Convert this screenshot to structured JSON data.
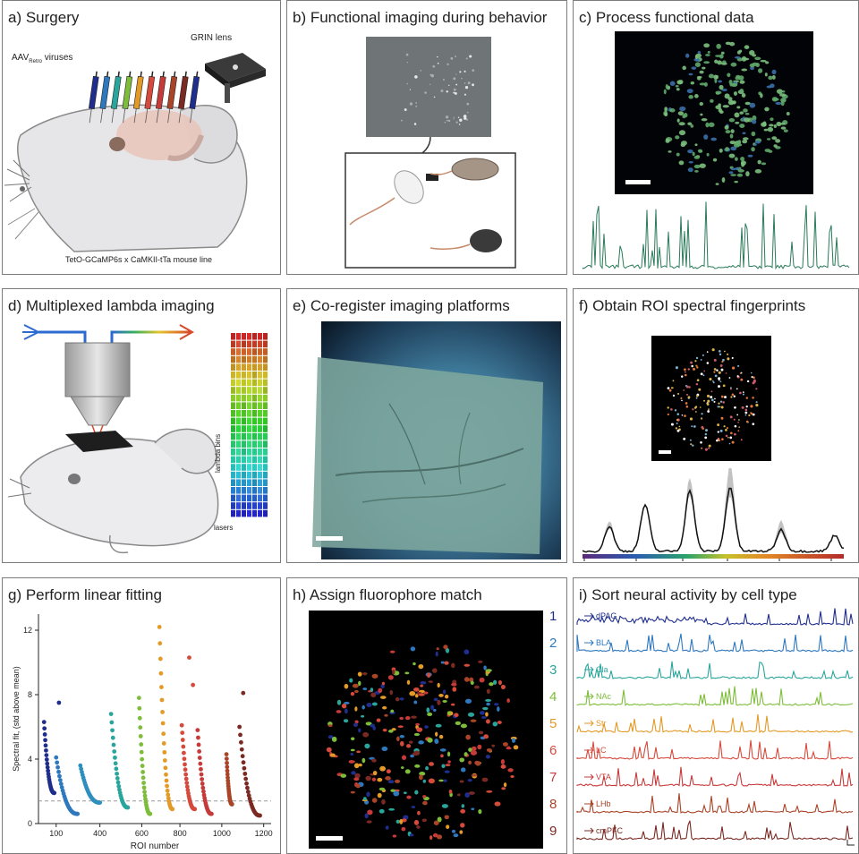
{
  "panels": {
    "a": {
      "title": "a) Surgery",
      "virus_label": "AAV",
      "virus_sub": "Retro",
      "virus_tail": " viruses",
      "grin_label": "GRIN lens",
      "mouse_line": "TetO-GCaMP6s x CaMKII-tTa mouse line"
    },
    "b": {
      "title": "b) Functional imaging during behavior"
    },
    "c": {
      "title": "c) Process functional data"
    },
    "d": {
      "title": "d) Multiplexed lambda imaging",
      "axis_y": "lambda bins",
      "axis_x": "lasers"
    },
    "e": {
      "title": "e) Co-register imaging platforms"
    },
    "f": {
      "title": "f) Obtain ROI spectral fingerprints"
    },
    "g": {
      "title": "g) Perform linear fitting"
    },
    "h": {
      "title": "h) Assign fluorophore match",
      "numbers": [
        "1",
        "2",
        "3",
        "4",
        "5",
        "6",
        "7",
        "8",
        "9"
      ]
    },
    "i": {
      "title": "i) Sort neural activity by cell type"
    }
  },
  "colors": {
    "c1": "#1f2e8c",
    "c2": "#2e78be",
    "c3": "#2aa59c",
    "c4": "#7dbd3a",
    "c5": "#e39a26",
    "c6": "#d64a3c",
    "c7": "#c63a3a",
    "c8": "#a94427",
    "c9": "#7a2a22"
  },
  "chart_data": {
    "type": "scatter",
    "xlabel": "ROI number",
    "ylabel": "Spectral fit, (std above mean)",
    "xticks": [
      "100",
      "400",
      "600",
      "800",
      "1000",
      "1200"
    ],
    "yticks": [
      "0",
      "4",
      "8",
      "12"
    ],
    "ylim": [
      0,
      13
    ],
    "threshold": 1.4,
    "series": [
      {
        "x_start": 30,
        "x_end": 85,
        "y_start": 6.3,
        "y_end": 1.9
      },
      {
        "x_start": 95,
        "x_end": 210,
        "y_start": 4.1,
        "y_end": 0.6
      },
      {
        "x_start": 225,
        "x_end": 330,
        "y_start": 3.6,
        "y_end": 1.3
      },
      {
        "x_start": 390,
        "x_end": 480,
        "y_start": 6.8,
        "y_end": 1.0
      },
      {
        "x_start": 540,
        "x_end": 600,
        "y_start": 7.8,
        "y_end": 0.6
      },
      {
        "x_start": 650,
        "x_end": 720,
        "y_start": 12.2,
        "y_end": 0.9
      },
      {
        "x_start": 770,
        "x_end": 840,
        "y_start": 6.1,
        "y_end": 0.9
      },
      {
        "x_start": 855,
        "x_end": 930,
        "y_start": 5.8,
        "y_end": 0.6
      },
      {
        "x_start": 1010,
        "x_end": 1040,
        "y_start": 4.3,
        "y_end": 1.2
      },
      {
        "x_start": 1080,
        "x_end": 1190,
        "y_start": 6.0,
        "y_end": 0.5
      }
    ],
    "outliers": [
      {
        "series": 1,
        "x": 110,
        "y": 7.5
      },
      {
        "series": 6,
        "x": 810,
        "y": 10.3
      },
      {
        "series": 6,
        "x": 830,
        "y": 8.6
      },
      {
        "series": 9,
        "x": 1100,
        "y": 8.1
      }
    ]
  },
  "traces": [
    {
      "label": "dPAG",
      "color": "#1f2e8c"
    },
    {
      "label": "BLA",
      "color": "#2e78be"
    },
    {
      "label": "Cla",
      "color": "#2aa59c"
    },
    {
      "label": "NAc",
      "color": "#7dbd3a"
    },
    {
      "label": "Str",
      "color": "#e39a26"
    },
    {
      "label": "LC",
      "color": "#d64a3c"
    },
    {
      "label": "VTA",
      "color": "#c63a3a"
    },
    {
      "label": "LHb",
      "color": "#a94427"
    },
    {
      "label": "cmPFC",
      "color": "#7a2a22"
    }
  ]
}
